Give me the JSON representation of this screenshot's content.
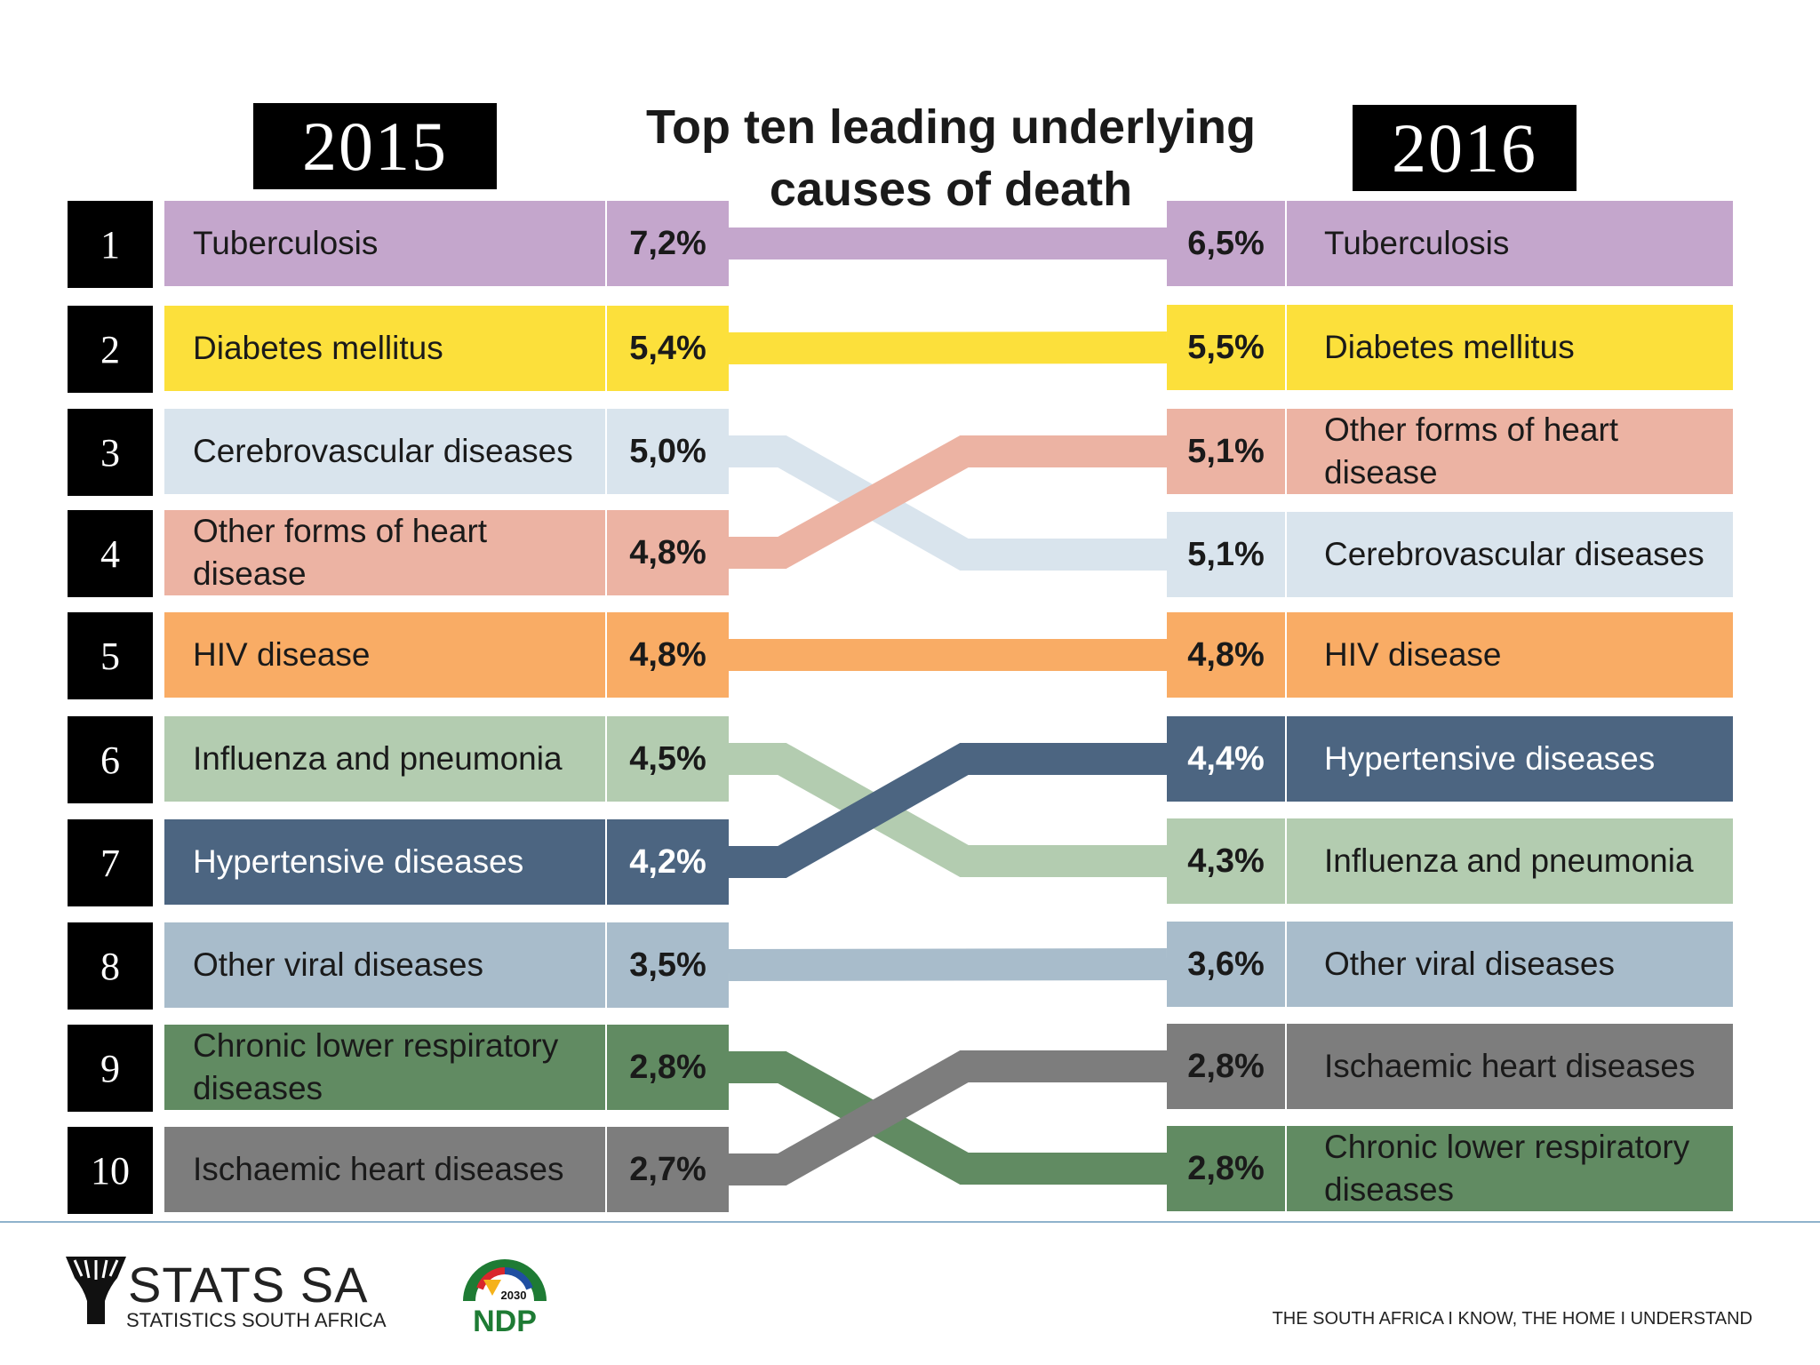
{
  "title": {
    "line1": "Top ten leading underlying",
    "line2": "causes of death"
  },
  "years": {
    "left": "2015",
    "right": "2016"
  },
  "colors": {
    "tuberculosis": "#c4a6cc",
    "diabetes": "#fce03b",
    "cerebrovascular": "#d9e4ed",
    "heart_other": "#ecb3a3",
    "hiv": "#f9ac65",
    "influenza": "#b3ccb0",
    "hypertensive": "#4c6581",
    "viral": "#a8bccb",
    "respiratory": "#618b62",
    "ischaemic": "#7d7d7d"
  },
  "chart_data": {
    "type": "slope",
    "title": "Top ten leading underlying causes of death",
    "series_names": [
      "2015",
      "2016"
    ],
    "causes": [
      {
        "key": "tuberculosis",
        "name": "Tuberculosis",
        "rank_2015": 1,
        "pct_2015": "7,2%",
        "value_2015": 7.2,
        "rank_2016": 1,
        "pct_2016": "6,5%",
        "value_2016": 6.5
      },
      {
        "key": "diabetes",
        "name": "Diabetes mellitus",
        "rank_2015": 2,
        "pct_2015": "5,4%",
        "value_2015": 5.4,
        "rank_2016": 2,
        "pct_2016": "5,5%",
        "value_2016": 5.5
      },
      {
        "key": "cerebrovascular",
        "name": "Cerebrovascular diseases",
        "rank_2015": 3,
        "pct_2015": "5,0%",
        "value_2015": 5.0,
        "rank_2016": 4,
        "pct_2016": "5,1%",
        "value_2016": 5.1
      },
      {
        "key": "heart_other",
        "name": "Other forms of heart disease",
        "rank_2015": 4,
        "pct_2015": "4,8%",
        "value_2015": 4.8,
        "rank_2016": 3,
        "pct_2016": "5,1%",
        "value_2016": 5.1
      },
      {
        "key": "hiv",
        "name": "HIV disease",
        "rank_2015": 5,
        "pct_2015": "4,8%",
        "value_2015": 4.8,
        "rank_2016": 5,
        "pct_2016": "4,8%",
        "value_2016": 4.8
      },
      {
        "key": "influenza",
        "name": "Influenza and pneumonia",
        "rank_2015": 6,
        "pct_2015": "4,5%",
        "value_2015": 4.5,
        "rank_2016": 7,
        "pct_2016": "4,3%",
        "value_2016": 4.3
      },
      {
        "key": "hypertensive",
        "name": "Hypertensive diseases",
        "rank_2015": 7,
        "pct_2015": "4,2%",
        "value_2015": 4.2,
        "rank_2016": 6,
        "pct_2016": "4,4%",
        "value_2016": 4.4
      },
      {
        "key": "viral",
        "name": "Other viral diseases",
        "rank_2015": 8,
        "pct_2015": "3,5%",
        "value_2015": 3.5,
        "rank_2016": 8,
        "pct_2016": "3,6%",
        "value_2016": 3.6
      },
      {
        "key": "respiratory",
        "name": "Chronic lower respiratory diseases",
        "rank_2015": 9,
        "pct_2015": "2,8%",
        "value_2015": 2.8,
        "rank_2016": 10,
        "pct_2016": "2,8%",
        "value_2016": 2.8
      },
      {
        "key": "ischaemic",
        "name": "Ischaemic heart diseases",
        "rank_2015": 10,
        "pct_2015": "2,7%",
        "value_2015": 2.7,
        "rank_2016": 9,
        "pct_2016": "2,8%",
        "value_2016": 2.8
      }
    ]
  },
  "left_rows": [
    {
      "rank": "1",
      "label": "Tuberculosis",
      "pct": "7,2%",
      "key": "tuberculosis"
    },
    {
      "rank": "2",
      "label": "Diabetes mellitus",
      "pct": "5,4%",
      "key": "diabetes"
    },
    {
      "rank": "3",
      "label": "Cerebrovascular diseases",
      "pct": "5,0%",
      "key": "cerebrovascular"
    },
    {
      "rank": "4",
      "label": "Other forms of heart disease",
      "pct": "4,8%",
      "key": "heart_other"
    },
    {
      "rank": "5",
      "label": "HIV disease",
      "pct": "4,8%",
      "key": "hiv"
    },
    {
      "rank": "6",
      "label": "Influenza and pneumonia",
      "pct": "4,5%",
      "key": "influenza"
    },
    {
      "rank": "7",
      "label": "Hypertensive diseases",
      "pct": "4,2%",
      "key": "hypertensive"
    },
    {
      "rank": "8",
      "label": "Other viral diseases",
      "pct": "3,5%",
      "key": "viral"
    },
    {
      "rank": "9",
      "label": "Chronic lower respiratory diseases",
      "pct": "2,8%",
      "key": "respiratory"
    },
    {
      "rank": "10",
      "label": "Ischaemic heart diseases",
      "pct": "2,7%",
      "key": "ischaemic"
    }
  ],
  "right_rows": [
    {
      "label": "Tuberculosis",
      "pct": "6,5%",
      "key": "tuberculosis"
    },
    {
      "label": "Diabetes mellitus",
      "pct": "5,5%",
      "key": "diabetes"
    },
    {
      "label": "Other forms of heart disease",
      "pct": "5,1%",
      "key": "heart_other"
    },
    {
      "label": "Cerebrovascular diseases",
      "pct": "5,1%",
      "key": "cerebrovascular"
    },
    {
      "label": "HIV disease",
      "pct": "4,8%",
      "key": "hiv"
    },
    {
      "label": "Hypertensive diseases",
      "pct": "4,4%",
      "key": "hypertensive"
    },
    {
      "label": "Influenza and pneumonia",
      "pct": "4,3%",
      "key": "influenza"
    },
    {
      "label": "Other viral diseases",
      "pct": "3,6%",
      "key": "viral"
    },
    {
      "label": "Ischaemic heart diseases",
      "pct": "2,8%",
      "key": "ischaemic"
    },
    {
      "label": "Chronic lower respiratory diseases",
      "pct": "2,8%",
      "key": "respiratory"
    }
  ],
  "footer": {
    "logo_name": "STATS SA",
    "logo_sub": "STATISTICS SOUTH AFRICA",
    "ndp_year": "2030",
    "ndp_text": "NDP",
    "tagline": "THE SOUTH AFRICA I KNOW, THE HOME I UNDERSTAND"
  }
}
